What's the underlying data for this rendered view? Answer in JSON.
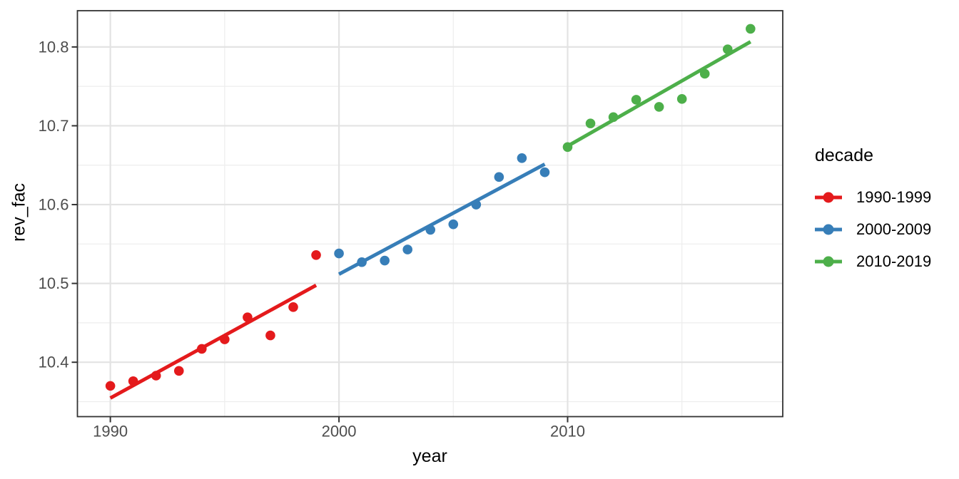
{
  "chart_data": {
    "type": "scatter",
    "title": "",
    "xlabel": "year",
    "ylabel": "rev_fac",
    "xlim": [
      1988.56,
      2019.41
    ],
    "ylim": [
      10.331,
      10.846
    ],
    "grid": "on",
    "x_ticks": {
      "major": [
        1990,
        2000,
        2010
      ],
      "minor": [
        1995,
        2005,
        2015
      ],
      "labels": [
        "1990",
        "2000",
        "2010"
      ]
    },
    "y_ticks": {
      "major": [
        10.4,
        10.5,
        10.6,
        10.7,
        10.8
      ],
      "minor": [
        10.35,
        10.45,
        10.55,
        10.65,
        10.75
      ],
      "labels": [
        "10.4",
        "10.5",
        "10.6",
        "10.7",
        "10.8"
      ]
    },
    "legend": {
      "title": "decade",
      "position": "right"
    },
    "series": [
      {
        "name": "1990-1999",
        "color": "#E41A1C",
        "trend": "linear",
        "x": [
          1990,
          1991,
          1992,
          1993,
          1994,
          1995,
          1996,
          1997,
          1998,
          1999
        ],
        "y": [
          10.37,
          10.376,
          10.383,
          10.389,
          10.417,
          10.429,
          10.457,
          10.434,
          10.47,
          10.536
        ]
      },
      {
        "name": "2000-2009",
        "color": "#377EB8",
        "trend": "linear",
        "x": [
          2000,
          2001,
          2002,
          2003,
          2004,
          2005,
          2006,
          2007,
          2008,
          2009
        ],
        "y": [
          10.538,
          10.527,
          10.529,
          10.543,
          10.568,
          10.575,
          10.6,
          10.635,
          10.659,
          10.641
        ]
      },
      {
        "name": "2010-2019",
        "color": "#4DAF4A",
        "trend": "linear",
        "x": [
          2010,
          2011,
          2012,
          2013,
          2014,
          2015,
          2016,
          2017,
          2018
        ],
        "y": [
          10.673,
          10.703,
          10.711,
          10.733,
          10.724,
          10.734,
          10.766,
          10.797,
          10.823
        ]
      }
    ],
    "style_colors": {
      "axis_text": "#4D4D4D",
      "axis_title": "#000000",
      "grid_major": "#E3E3E3",
      "grid_minor": "#EDEDED",
      "panel_border": "#333333",
      "tick_mark": "#333333",
      "background": "#FFFFFF"
    }
  }
}
